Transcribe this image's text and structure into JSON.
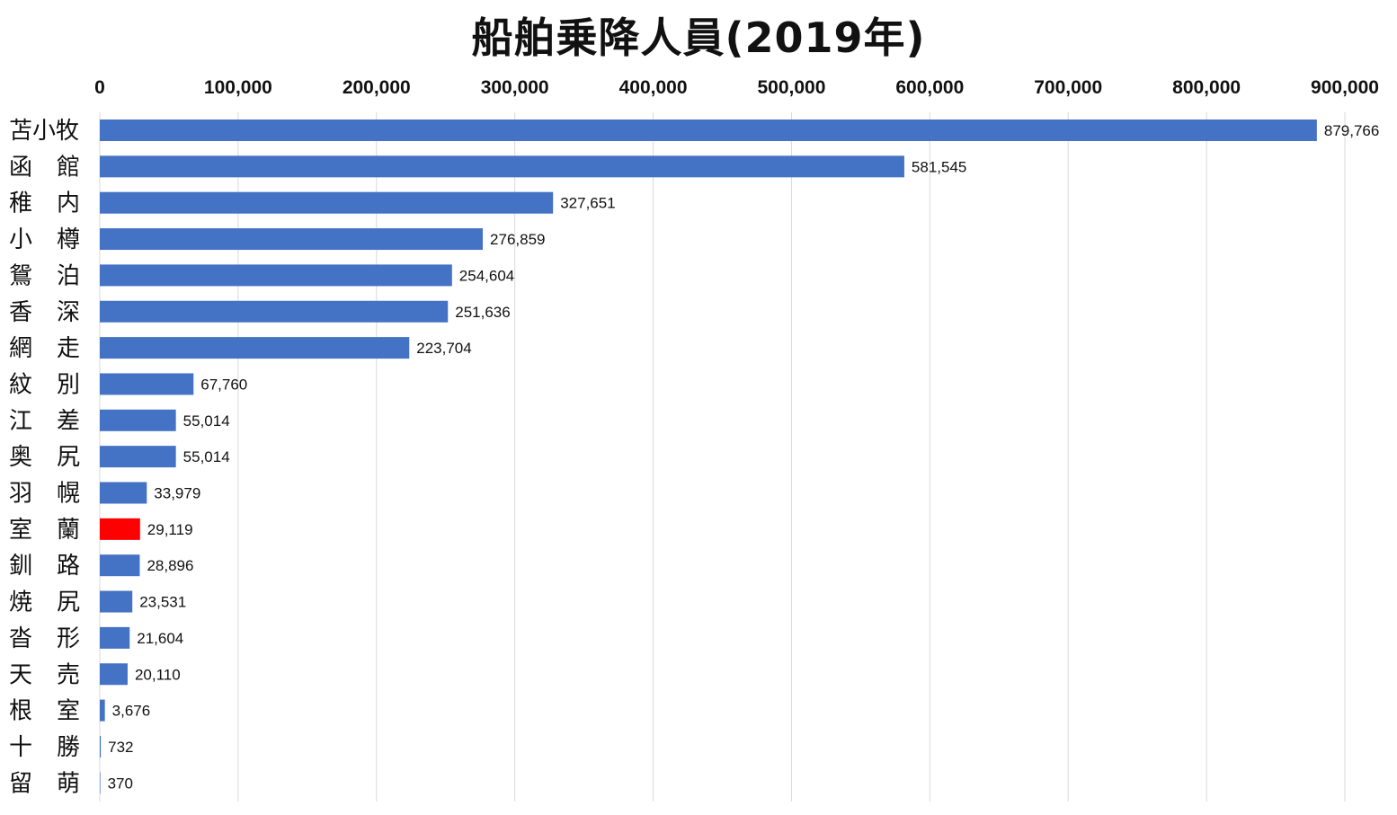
{
  "chart_data": {
    "type": "bar",
    "orientation": "horizontal",
    "title": "船舶乗降人員(2019年)",
    "xlim": [
      0,
      900000
    ],
    "x_ticks": [
      "0",
      "100,000",
      "200,000",
      "300,000",
      "400,000",
      "500,000",
      "600,000",
      "700,000",
      "800,000",
      "900,000"
    ],
    "x_tick_values": [
      0,
      100000,
      200000,
      300000,
      400000,
      500000,
      600000,
      700000,
      800000,
      900000
    ],
    "x_axis_position": "top",
    "grid": true,
    "categories": [
      "苫小牧",
      "函 館",
      "稚 内",
      "小 樽",
      "鴛 泊",
      "香 深",
      "網 走",
      "紋 別",
      "江 差",
      "奥 尻",
      "羽 幌",
      "室 蘭",
      "釧 路",
      "焼 尻",
      "沓 形",
      "天 売",
      "根 室",
      "十 勝",
      "留 萌"
    ],
    "values": [
      879766,
      581545,
      327651,
      276859,
      254604,
      251636,
      223704,
      67760,
      55014,
      55014,
      33979,
      29119,
      28896,
      23531,
      21604,
      20110,
      3676,
      732,
      370
    ],
    "value_labels": [
      "879,766",
      "581,545",
      "327,651",
      "276,859",
      "254,604",
      "251,636",
      "223,704",
      "67,760",
      "55,014",
      "55,014",
      "33,979",
      "29,119",
      "28,896",
      "23,531",
      "21,604",
      "20,110",
      "3,676",
      "732",
      "370"
    ],
    "colors": {
      "default": "#4472C4",
      "highlight": "#FF0000"
    },
    "highlight_index": 11
  }
}
